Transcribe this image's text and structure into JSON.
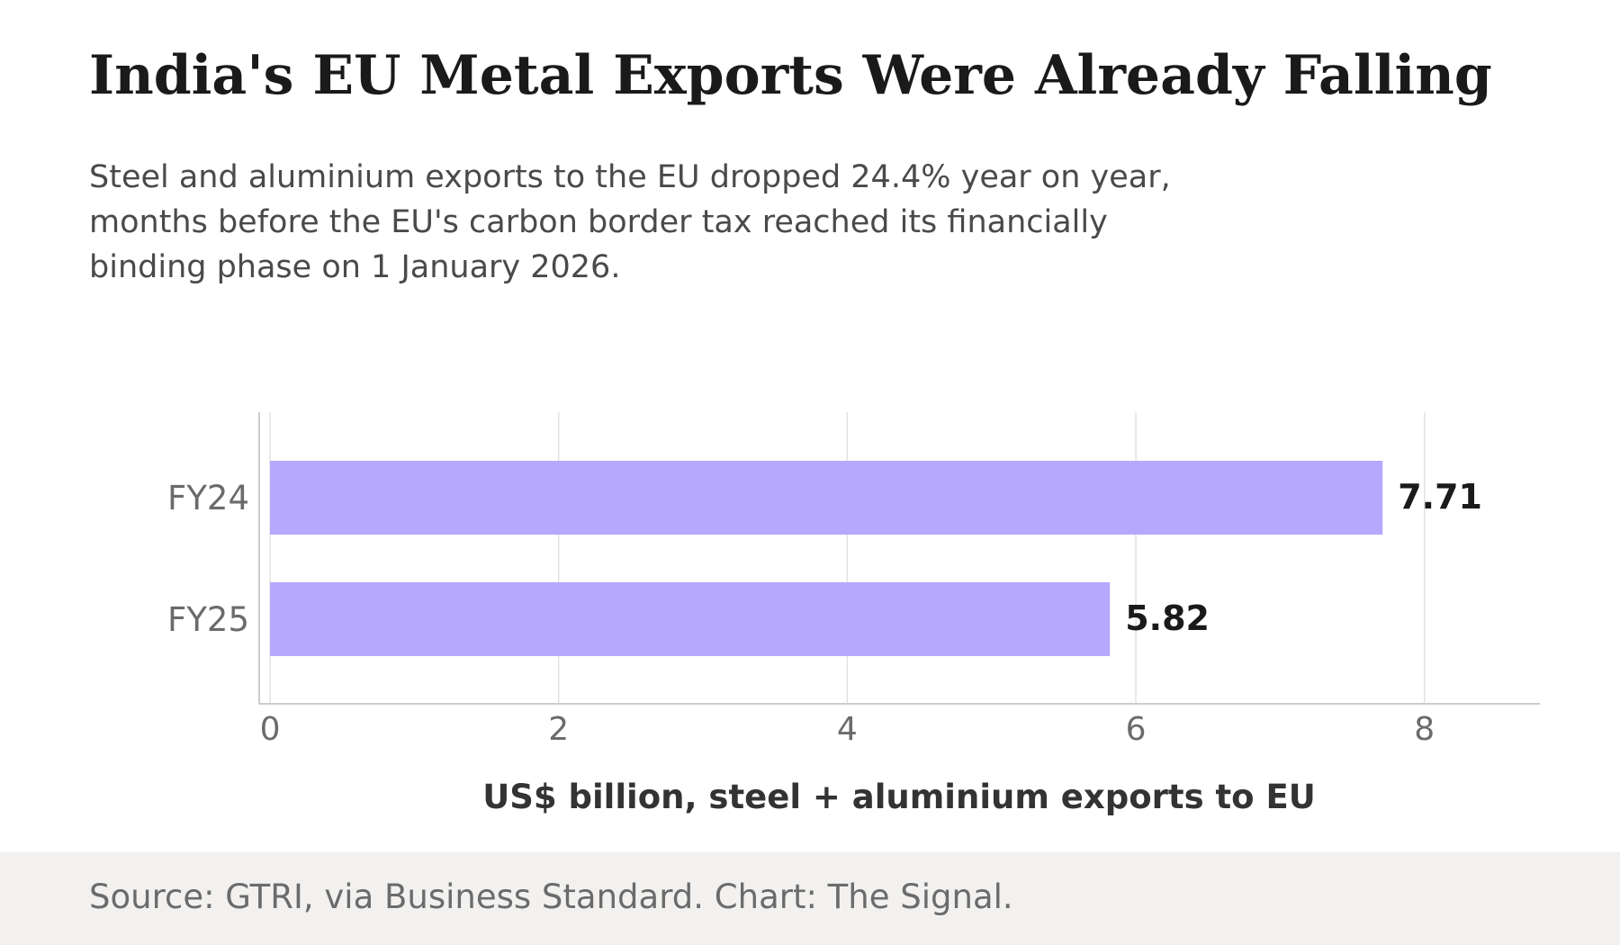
{
  "title": "India's EU Metal Exports Were Already Falling",
  "subtitle_lines": [
    "Steel and aluminium exports to the EU dropped 24.4% year on year,",
    "months before the EU's carbon border tax reached its financially",
    "binding phase on 1 January 2026."
  ],
  "source": "Source: GTRI, via Business Standard. Chart: The Signal.",
  "chart_data": {
    "type": "bar",
    "orientation": "horizontal",
    "categories": [
      "FY24",
      "FY25"
    ],
    "values": [
      7.71,
      5.82
    ],
    "value_labels": [
      "7.71",
      "5.82"
    ],
    "xlabel": "US$ billion, steel + aluminium exports to EU",
    "ylabel": "",
    "xlim": [
      -0.075,
      8.8
    ],
    "xticks": [
      0,
      2,
      4,
      6,
      8
    ],
    "grid": true,
    "legend": "none",
    "bar_color": "#b6a8fd"
  },
  "colors": {
    "bar": "#b6a8fd",
    "grid": "#e2e2e2",
    "axis": "#cccccc",
    "tick_label": "#6b6b6b",
    "value_label": "#1a1a1a",
    "axis_title": "#333333",
    "footer_bg": "#f2f1ef"
  }
}
